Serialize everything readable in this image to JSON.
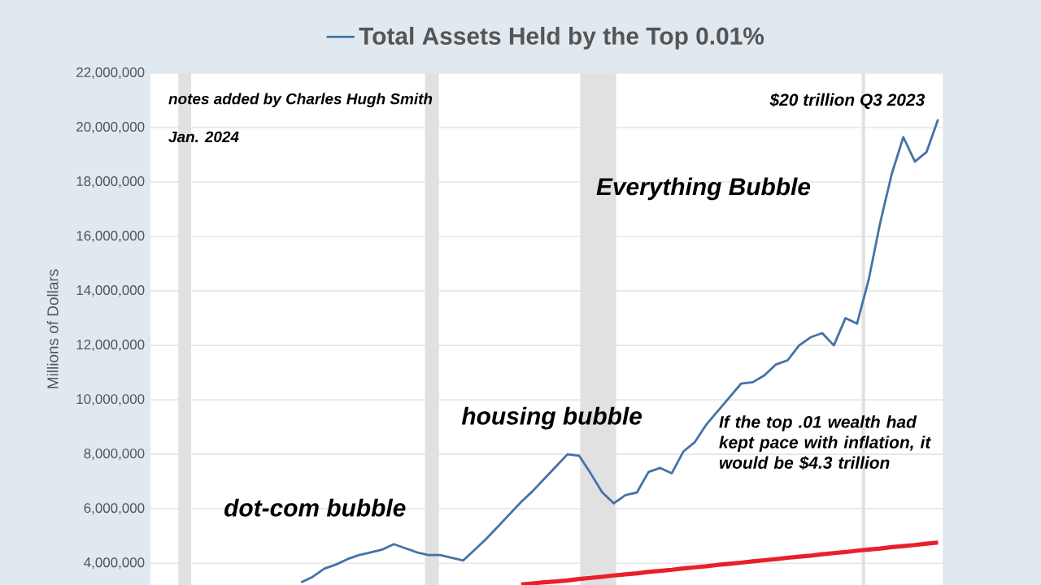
{
  "chart_data": {
    "type": "line",
    "ylabel": "Millions of Dollars",
    "categories": [
      null,
      null,
      null,
      null,
      null,
      null,
      null,
      null,
      null,
      null,
      null,
      null,
      null,
      null,
      null,
      null,
      null,
      null,
      null,
      null,
      null,
      null,
      null,
      null,
      null,
      null,
      null,
      null,
      null,
      null,
      null,
      null,
      null,
      null,
      null,
      null,
      null,
      null,
      null,
      null,
      null,
      null,
      null,
      null,
      null,
      null,
      null,
      null,
      null,
      null,
      null,
      null,
      null,
      null,
      null,
      null,
      null,
      null,
      null,
      null,
      null,
      null,
      null,
      null,
      null,
      null,
      null,
      null,
      null
    ],
    "series": [
      {
        "name": "Total Assets Held by the Top 0.01%",
        "color": "#4572a7",
        "values": [
          null,
          null,
          null,
          null,
          null,
          null,
          null,
          null,
          null,
          null,
          null,
          null,
          null,
          3300000,
          3500000,
          3800000,
          3950000,
          4150000,
          4300000,
          4400000,
          4500000,
          4700000,
          4550000,
          4400000,
          4300000,
          4300000,
          4200000,
          4100000,
          4500000,
          4900000,
          5350000,
          5800000,
          6250000,
          6650000,
          7100000,
          7550000,
          8000000,
          7950000,
          7300000,
          6600000,
          6200000,
          6500000,
          6600000,
          7350000,
          7500000,
          7300000,
          8100000,
          8450000,
          9100000,
          9600000,
          10100000,
          10600000,
          10650000,
          10900000,
          11300000,
          11450000,
          12000000,
          12300000,
          12450000,
          12000000,
          13000000,
          12800000,
          14400000,
          16500000,
          18300000,
          19650000,
          18750000,
          19100000,
          20300000
        ]
      },
      {
        "color": "#e8202a",
        "values": [
          null,
          null,
          null,
          null,
          null,
          null,
          null,
          null,
          null,
          null,
          null,
          null,
          null,
          null,
          null,
          null,
          null,
          null,
          null,
          null,
          null,
          null,
          null,
          null,
          null,
          null,
          null,
          null,
          null,
          null,
          null,
          null,
          3220000,
          3260000,
          3300000,
          3330000,
          3370000,
          3420000,
          3460000,
          3500000,
          3550000,
          3590000,
          3630000,
          3680000,
          3720000,
          3760000,
          3810000,
          3850000,
          3890000,
          3940000,
          3980000,
          4020000,
          4070000,
          4110000,
          4150000,
          4200000,
          4240000,
          4280000,
          4330000,
          4370000,
          4410000,
          4460000,
          4500000,
          4540000,
          4590000,
          4630000,
          4670000,
          4720000,
          4760000
        ]
      }
    ],
    "ylim": [
      3200000,
      22000000
    ],
    "yticks": [
      {
        "value": 4000000,
        "label": "4,000,000"
      },
      {
        "value": 6000000,
        "label": "6,000,000"
      },
      {
        "value": 8000000,
        "label": "8,000,000"
      },
      {
        "value": 10000000,
        "label": "10,000,000"
      },
      {
        "value": 12000000,
        "label": "12,000,000"
      },
      {
        "value": 14000000,
        "label": "14,000,000"
      },
      {
        "value": 16000000,
        "label": "16,000,000"
      },
      {
        "value": 18000000,
        "label": "18,000,000"
      },
      {
        "value": 20000000,
        "label": "20,000,000"
      },
      {
        "value": 22000000,
        "label": "22,000,000"
      }
    ],
    "annotations": [
      "notes added by Charles Hugh Smith",
      "Jan. 2024",
      "$20 trillion Q3 2023",
      "Everything Bubble",
      "housing bubble",
      "dot-com bubble",
      "If the top .01 wealth had kept pace with inflation, it would be  $4.3 trillion"
    ],
    "grid": "y",
    "legend": "top"
  }
}
